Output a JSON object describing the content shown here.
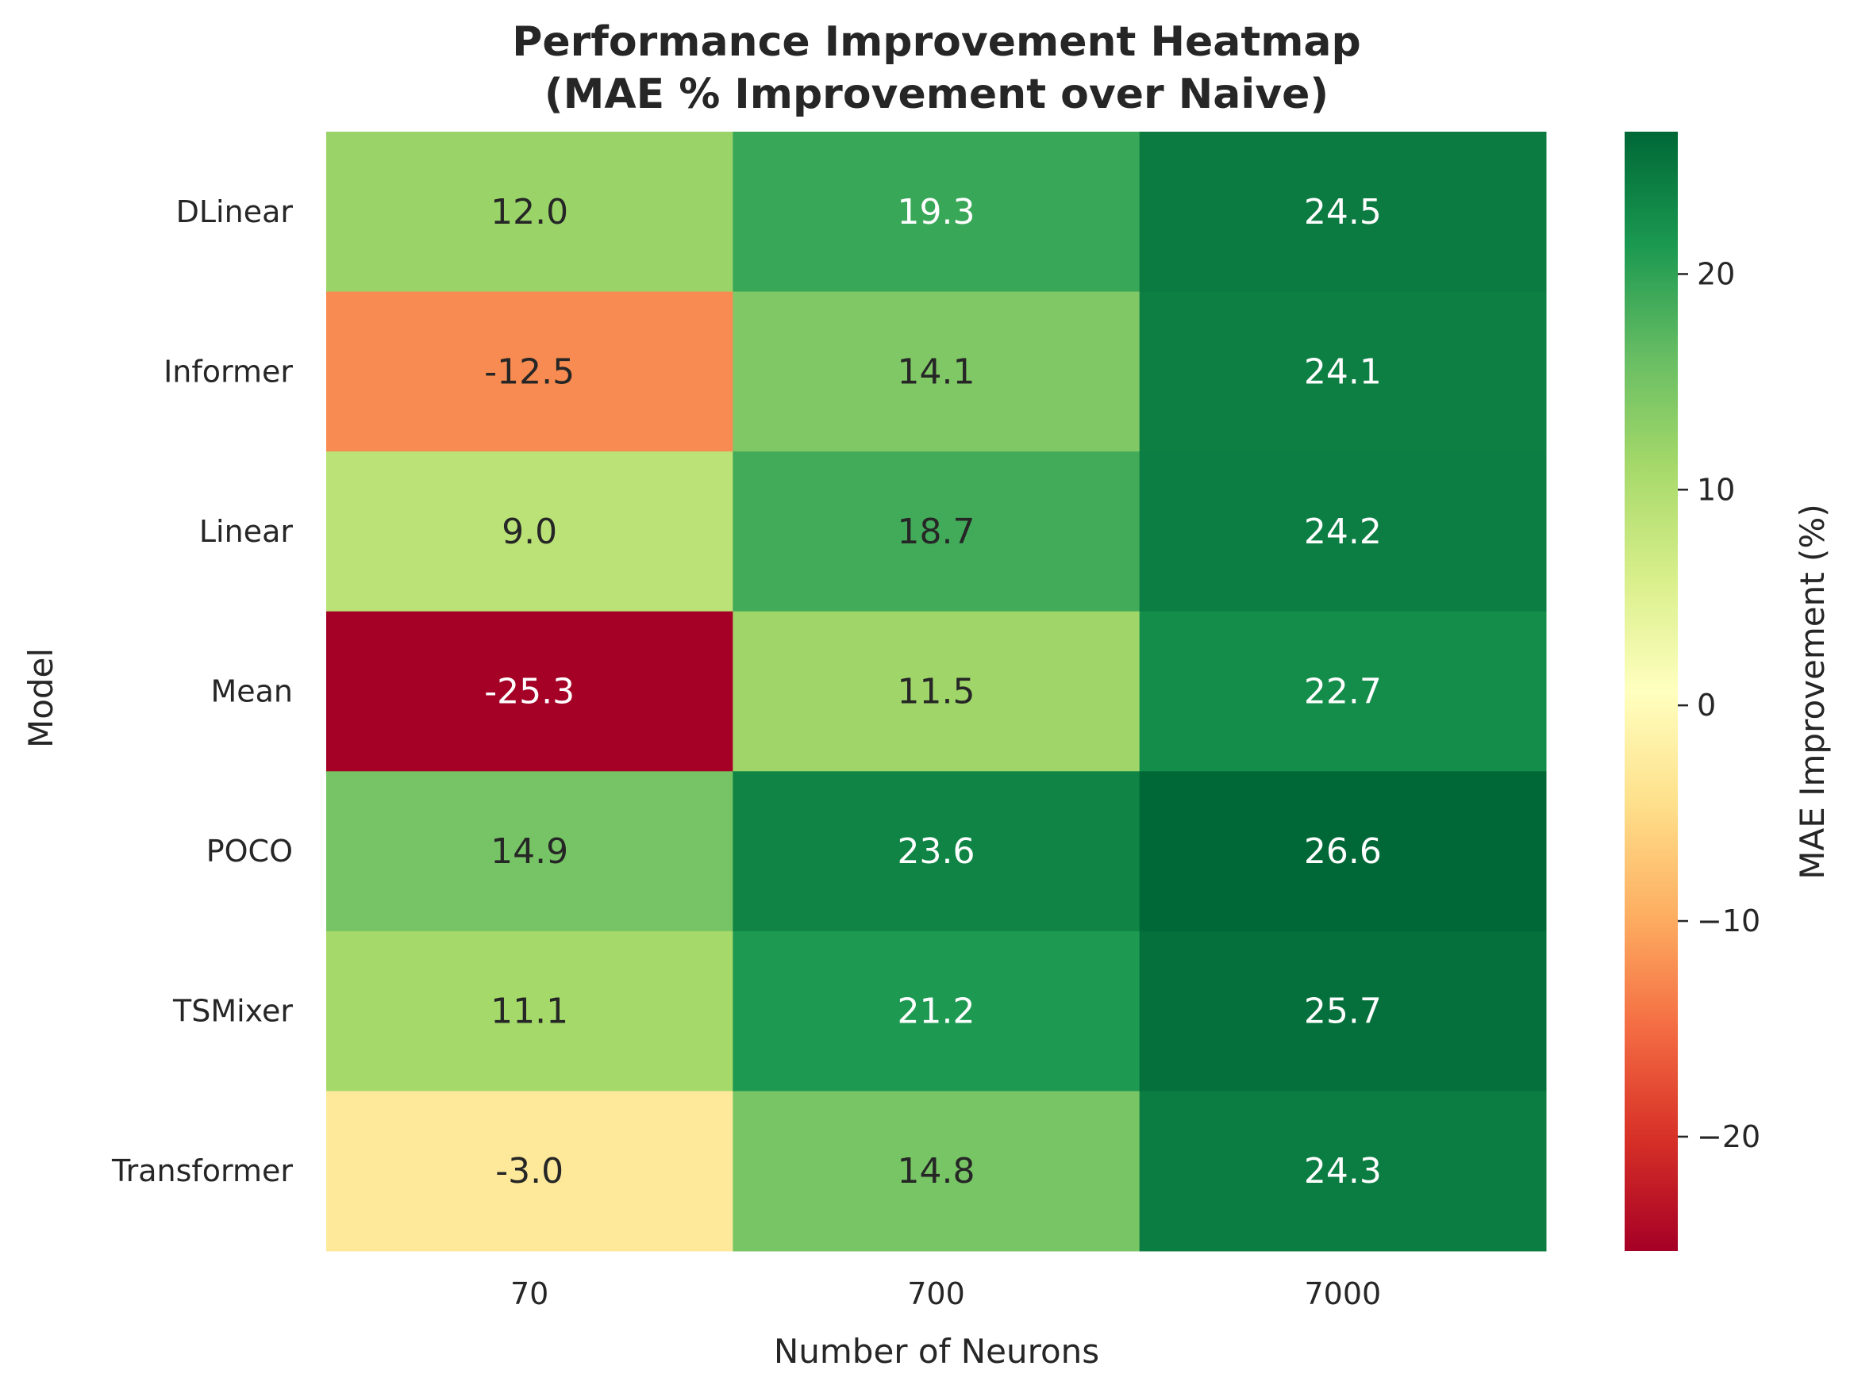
{
  "chart_data": {
    "type": "heatmap",
    "title": "Performance Improvement Heatmap\n(MAE % Improvement over Naive)",
    "title_lines": [
      "Performance Improvement Heatmap",
      "(MAE % Improvement over Naive)"
    ],
    "xlabel": "Number of Neurons",
    "ylabel": "Model",
    "x_categories": [
      "70",
      "700",
      "7000"
    ],
    "y_categories": [
      "DLinear",
      "Informer",
      "Linear",
      "Mean",
      "POCO",
      "TSMixer",
      "Transformer"
    ],
    "values": [
      [
        12.0,
        19.3,
        24.5
      ],
      [
        -12.5,
        14.1,
        24.1
      ],
      [
        9.0,
        18.7,
        24.2
      ],
      [
        -25.3,
        11.5,
        22.7
      ],
      [
        14.9,
        23.6,
        26.6
      ],
      [
        11.1,
        21.2,
        25.7
      ],
      [
        -3.0,
        14.8,
        24.3
      ]
    ],
    "value_labels": [
      [
        "12.0",
        "19.3",
        "24.5"
      ],
      [
        "-12.5",
        "14.1",
        "24.1"
      ],
      [
        "9.0",
        "18.7",
        "24.2"
      ],
      [
        "-25.3",
        "11.5",
        "22.7"
      ],
      [
        "14.9",
        "23.6",
        "26.6"
      ],
      [
        "11.1",
        "21.2",
        "25.7"
      ],
      [
        "-3.0",
        "14.8",
        "24.3"
      ]
    ],
    "colormap": "RdYlGn",
    "color_range": [
      -25.3,
      26.6
    ],
    "center": 0,
    "colorbar": {
      "label": "MAE Improvement (%)",
      "ticks": [
        20,
        10,
        0,
        -10,
        -20
      ],
      "tick_labels": [
        "20",
        "10",
        "0",
        "−10",
        "−20"
      ]
    },
    "grid": false
  }
}
